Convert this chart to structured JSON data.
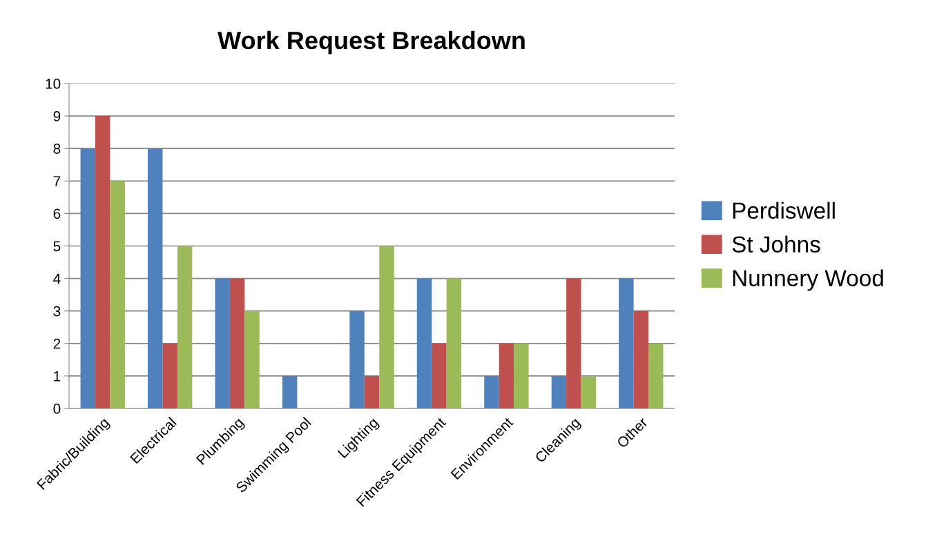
{
  "chart_data": {
    "type": "bar",
    "title": "Work Request Breakdown",
    "categories": [
      "Fabric/Building",
      "Electrical",
      "Plumbing",
      "Swimming Pool",
      "Lighting",
      "Fitness Equipment",
      "Environment",
      "Cleaning",
      "Other"
    ],
    "series": [
      {
        "name": "Perdiswell",
        "color": "#4f81bd",
        "values": [
          8,
          8,
          4,
          1,
          3,
          4,
          1,
          1,
          4
        ]
      },
      {
        "name": "St Johns",
        "color": "#c0504d",
        "values": [
          9,
          2,
          4,
          0,
          1,
          2,
          2,
          4,
          3
        ]
      },
      {
        "name": "Nunnery Wood",
        "color": "#9bbb59",
        "values": [
          7,
          5,
          3,
          0,
          5,
          4,
          2,
          1,
          2
        ]
      }
    ],
    "ylim": [
      0,
      10
    ],
    "yticks": [
      0,
      1,
      2,
      3,
      4,
      5,
      6,
      7,
      8,
      9,
      10
    ],
    "grid": "y",
    "legend": "right"
  }
}
